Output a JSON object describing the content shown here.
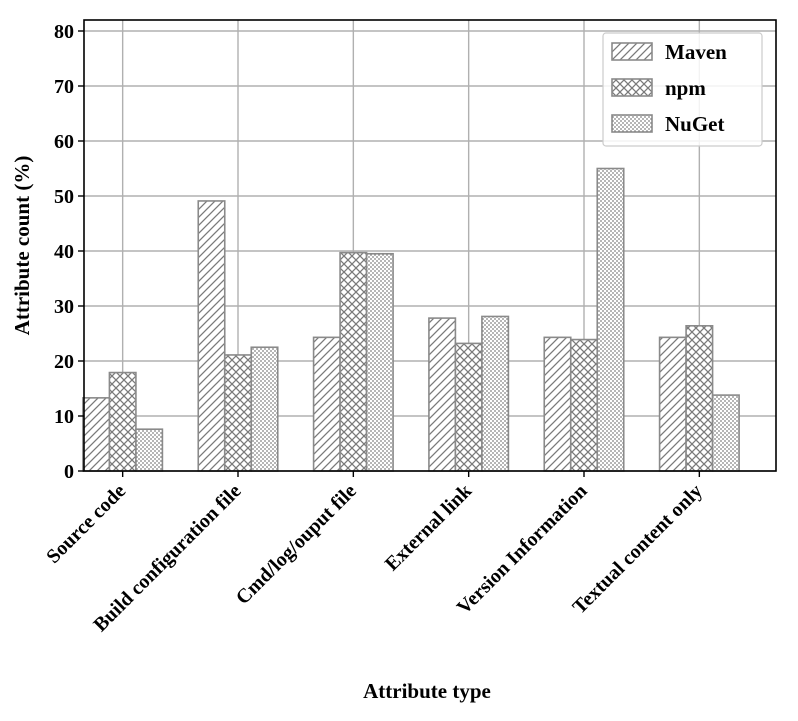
{
  "chart_data": {
    "type": "bar",
    "title": "",
    "xlabel": "Attribute type",
    "ylabel": "Attribute count (%)",
    "ylim": [
      0,
      82
    ],
    "yticks": [
      0,
      10,
      20,
      30,
      40,
      50,
      60,
      70,
      80
    ],
    "grid": true,
    "legend_position": "top-right",
    "categories": [
      "Source code",
      "Build configuration file",
      "Cmd/log/ouput file",
      "External link",
      "Version Information",
      "Textual content only"
    ],
    "series": [
      {
        "name": "Maven",
        "hatch": "diagonal",
        "values": [
          13.3,
          49.1,
          24.3,
          27.8,
          24.3,
          24.3
        ]
      },
      {
        "name": "npm",
        "hatch": "crosshatch",
        "values": [
          17.9,
          21.1,
          39.7,
          23.2,
          23.9,
          26.4
        ]
      },
      {
        "name": "NuGet",
        "hatch": "dots",
        "values": [
          7.6,
          22.5,
          39.5,
          28.1,
          55.0,
          13.8
        ]
      }
    ],
    "colors": {
      "bar_edge": "#8a8a8a",
      "hatch": "#7a7a7a",
      "grid": "#b0b0b0",
      "axis": "#000000"
    }
  }
}
